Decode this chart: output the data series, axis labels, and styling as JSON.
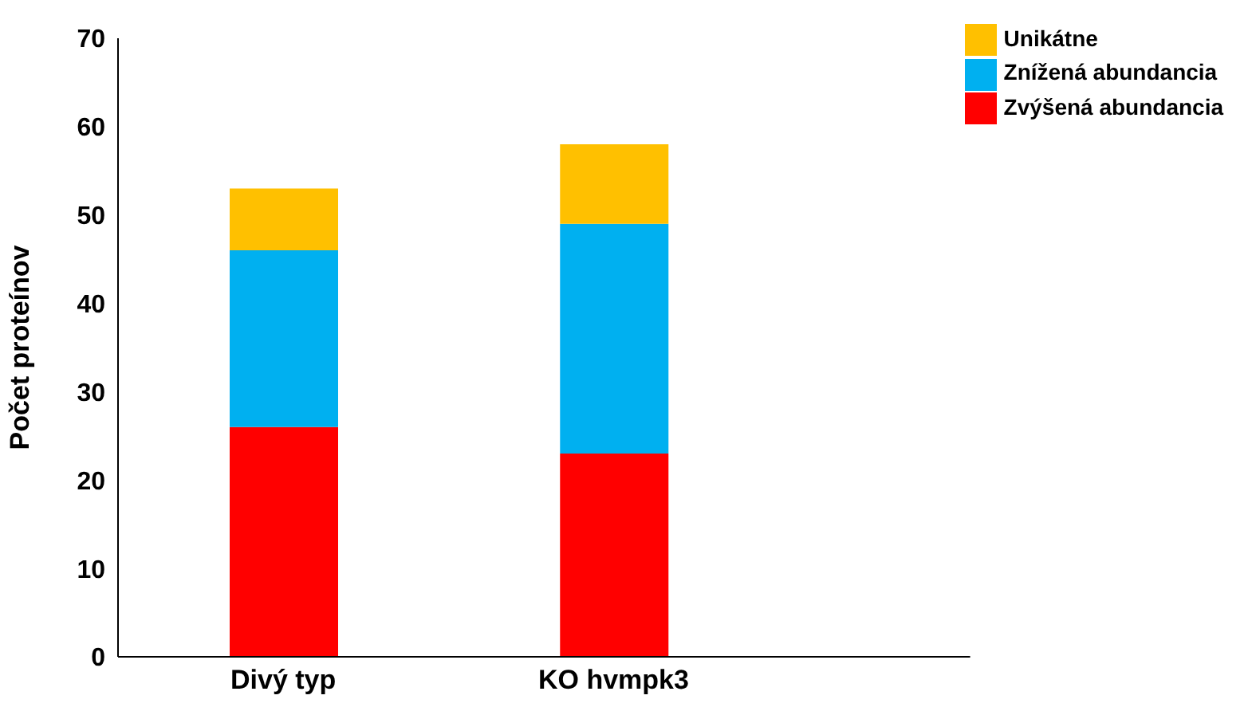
{
  "chart_data": {
    "type": "bar",
    "stacked": true,
    "ylabel": "Počet proteínov",
    "categories": [
      "Divý typ",
      "KO hvmpk3"
    ],
    "series": [
      {
        "name": "Zvýšená abundancia",
        "color": "#ff0000",
        "values": [
          26,
          23
        ]
      },
      {
        "name": "Znížená abundancia",
        "color": "#00b0f0",
        "values": [
          20,
          26
        ]
      },
      {
        "name": "Unikátne",
        "color": "#ffc000",
        "values": [
          7,
          9
        ]
      }
    ],
    "ylim": [
      0,
      70
    ],
    "yticks": [
      0,
      10,
      20,
      30,
      40,
      50,
      60,
      70
    ],
    "grid": false,
    "legend": "top right"
  }
}
